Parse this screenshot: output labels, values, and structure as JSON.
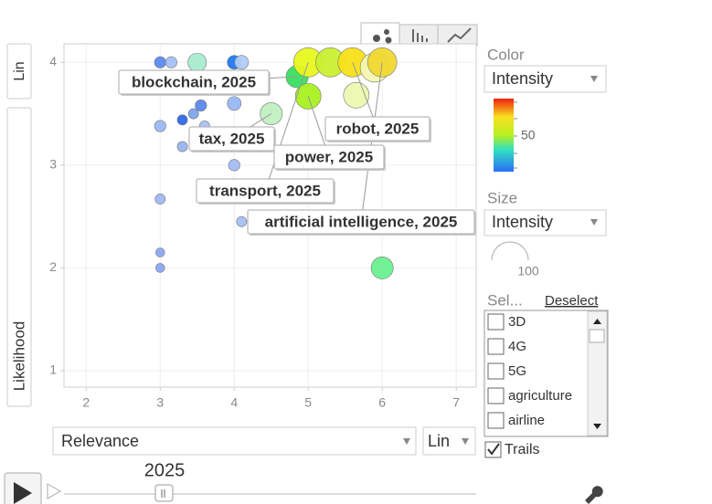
{
  "chart_data": {
    "type": "bubble",
    "x_label": "Relevance",
    "y_label": "Likelihood",
    "x_scale": "Lin",
    "y_scale": "Lin",
    "xlim": [
      1.7,
      7.27
    ],
    "ylim": [
      0.84,
      4.18
    ],
    "xticks": [
      2,
      3,
      4,
      5,
      6,
      7
    ],
    "yticks": [
      1,
      2,
      3,
      4
    ],
    "grid": true,
    "series": [
      {
        "name": "2025",
        "x": [
          3.0,
          3.15,
          3.5,
          4.0,
          4.1,
          4.0,
          3.0,
          3.3,
          3.45,
          3.55,
          3.6,
          3.3,
          4.0,
          3.0,
          3.0,
          3.0,
          4.1,
          4.5,
          4.85,
          5.0,
          5.0,
          5.3,
          5.6,
          5.65,
          5.9,
          6.0,
          6.0
        ],
        "values": [
          4.0,
          4.0,
          4.0,
          4.0,
          4.0,
          3.6,
          3.38,
          3.44,
          3.5,
          3.58,
          3.38,
          3.18,
          3.0,
          2.67,
          2.15,
          2.0,
          2.45,
          3.5,
          3.86,
          3.67,
          4.0,
          4.0,
          4.0,
          3.68,
          3.95,
          4.0,
          2.0
        ],
        "sizes": [
          25,
          25,
          55,
          35,
          35,
          35,
          25,
          20,
          20,
          25,
          20,
          20,
          25,
          20,
          15,
          15,
          20,
          70,
          70,
          85,
          100,
          100,
          100,
          85,
          100,
          100,
          70
        ],
        "colors": [
          "#5b8af0",
          "#a4c0f8",
          "#a8ecd0",
          "#1f78f0",
          "#b0ccf8",
          "#98b8f4",
          "#9cb8f4",
          "#2f68e8",
          "#7ea4f0",
          "#5a88ec",
          "#a8c0f4",
          "#98b4f0",
          "#a4bcf4",
          "#a0b8f4",
          "#8aa8f0",
          "#8aa8f0",
          "#a8c0f4",
          "#c0f0c0",
          "#38e060",
          "#a8f020",
          "#e8f81c",
          "#c8f030",
          "#f8e018",
          "#ecf8b0",
          "#f4f8b0",
          "#f0d830",
          "#6af090"
        ]
      }
    ],
    "annotations": [
      {
        "text": "blockchain, 2025",
        "point": 18
      },
      {
        "text": "tax, 2025",
        "point": 17
      },
      {
        "text": "power, 2025",
        "point": 19
      },
      {
        "text": "transport, 2025",
        "point": 20
      },
      {
        "text": "robot, 2025",
        "point": 22
      },
      {
        "text": "artificial intelligence, 2025",
        "point": 25
      }
    ],
    "time": "2025"
  },
  "controls": {
    "color_label": "Color",
    "color_by": "Intensity",
    "color_mid": 50,
    "size_label": "Size",
    "size_by": "Intensity",
    "size_max": 100,
    "select_label": "Sel...",
    "deselect": "Deselect",
    "items": [
      "3D",
      "4G",
      "5G",
      "agriculture",
      "airline"
    ],
    "trails": "Trails"
  }
}
